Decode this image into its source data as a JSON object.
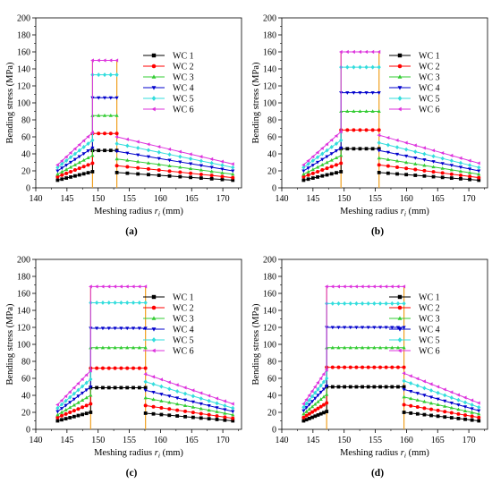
{
  "chart_data": [
    {
      "type": "line",
      "panel_label": "(a)",
      "xlabel": "Meshing radius",
      "xlabel_var": "r",
      "xlabel_sub": "i",
      "xlabel_unit": "(mm)",
      "ylabel": "Bending stress (MPa)",
      "xlim": [
        140,
        173
      ],
      "ylim": [
        0,
        200
      ],
      "xticks": [
        140,
        145,
        150,
        155,
        160,
        165,
        170
      ],
      "yticks": [
        0,
        20,
        40,
        60,
        80,
        100,
        120,
        140,
        160,
        180,
        200
      ],
      "legend_position": "top-right",
      "grid": false,
      "flat_start": 149.1,
      "flat_end": 153.0,
      "series": [
        {
          "name": "WC 1",
          "color": "#000000",
          "marker": "square",
          "left_x": [
            143.5,
            149.1
          ],
          "left_y": [
            9,
            19
          ],
          "flat_y": 44,
          "right_x": [
            153.0,
            171.6
          ],
          "right_y": [
            18,
            9
          ]
        },
        {
          "name": "WC 2",
          "color": "#ff0000",
          "marker": "circle",
          "left_x": [
            143.5,
            149.1
          ],
          "left_y": [
            13,
            29
          ],
          "flat_y": 64,
          "right_x": [
            153.0,
            171.6
          ],
          "right_y": [
            26,
            12
          ]
        },
        {
          "name": "WC 3",
          "color": "#33cc33",
          "marker": "triangle-up",
          "left_x": [
            143.5,
            149.1
          ],
          "left_y": [
            16,
            38
          ],
          "flat_y": 85,
          "right_x": [
            153.0,
            171.6
          ],
          "right_y": [
            34,
            16
          ]
        },
        {
          "name": "WC 4",
          "color": "#0000cc",
          "marker": "triangle-down",
          "left_x": [
            143.5,
            149.1
          ],
          "left_y": [
            20,
            47
          ],
          "flat_y": 106,
          "right_x": [
            153.0,
            171.6
          ],
          "right_y": [
            43,
            20
          ]
        },
        {
          "name": "WC 5",
          "color": "#33dddd",
          "marker": "diamond",
          "left_x": [
            143.5,
            149.1
          ],
          "left_y": [
            24,
            56
          ],
          "flat_y": 133,
          "right_x": [
            153.0,
            171.6
          ],
          "right_y": [
            52,
            24
          ]
        },
        {
          "name": "WC 6",
          "color": "#dd33dd",
          "marker": "triangle-left",
          "left_x": [
            143.5,
            149.1
          ],
          "left_y": [
            27,
            65
          ],
          "flat_y": 150,
          "right_x": [
            153.0,
            171.6
          ],
          "right_y": [
            60,
            28
          ]
        }
      ]
    },
    {
      "type": "line",
      "panel_label": "(b)",
      "xlabel": "Meshing radius",
      "xlabel_var": "r",
      "xlabel_sub": "i",
      "xlabel_unit": "(mm)",
      "ylabel": "Bending stress (MPa)",
      "xlim": [
        140,
        173
      ],
      "ylim": [
        0,
        200
      ],
      "xticks": [
        140,
        145,
        150,
        155,
        160,
        165,
        170
      ],
      "yticks": [
        0,
        20,
        40,
        60,
        80,
        100,
        120,
        140,
        160,
        180,
        200
      ],
      "legend_position": "top-right",
      "grid": false,
      "flat_start": 149.5,
      "flat_end": 155.6,
      "series": [
        {
          "name": "WC 1",
          "color": "#000000",
          "marker": "square",
          "left_x": [
            143.5,
            149.5
          ],
          "left_y": [
            9,
            19
          ],
          "flat_y": 46,
          "right_x": [
            155.6,
            171.6
          ],
          "right_y": [
            18,
            9
          ]
        },
        {
          "name": "WC 2",
          "color": "#ff0000",
          "marker": "circle",
          "left_x": [
            143.5,
            149.5
          ],
          "left_y": [
            13,
            29
          ],
          "flat_y": 68,
          "right_x": [
            155.6,
            171.6
          ],
          "right_y": [
            27,
            12
          ]
        },
        {
          "name": "WC 3",
          "color": "#33cc33",
          "marker": "triangle-up",
          "left_x": [
            143.5,
            149.5
          ],
          "left_y": [
            16,
            38
          ],
          "flat_y": 90,
          "right_x": [
            155.6,
            171.6
          ],
          "right_y": [
            35,
            16
          ]
        },
        {
          "name": "WC 4",
          "color": "#0000cc",
          "marker": "triangle-down",
          "left_x": [
            143.5,
            149.5
          ],
          "left_y": [
            20,
            47
          ],
          "flat_y": 112,
          "right_x": [
            155.6,
            171.6
          ],
          "right_y": [
            44,
            20
          ]
        },
        {
          "name": "WC 5",
          "color": "#33dddd",
          "marker": "diamond",
          "left_x": [
            143.5,
            149.5
          ],
          "left_y": [
            24,
            56
          ],
          "flat_y": 142,
          "right_x": [
            155.6,
            171.6
          ],
          "right_y": [
            53,
            24
          ]
        },
        {
          "name": "WC 6",
          "color": "#dd33dd",
          "marker": "triangle-left",
          "left_x": [
            143.5,
            149.5
          ],
          "left_y": [
            27,
            66
          ],
          "flat_y": 160,
          "right_x": [
            155.6,
            171.6
          ],
          "right_y": [
            62,
            29
          ]
        }
      ]
    },
    {
      "type": "line",
      "panel_label": "(c)",
      "xlabel": "Meshing radius",
      "xlabel_var": "r",
      "xlabel_sub": "i",
      "xlabel_unit": "(mm)",
      "ylabel": "Bending stress (MPa)",
      "xlim": [
        140,
        173
      ],
      "ylim": [
        0,
        200
      ],
      "xticks": [
        140,
        145,
        150,
        155,
        160,
        165,
        170
      ],
      "yticks": [
        0,
        20,
        40,
        60,
        80,
        100,
        120,
        140,
        160,
        180,
        200
      ],
      "legend_position": "top-right",
      "grid": false,
      "flat_start": 148.8,
      "flat_end": 157.6,
      "series": [
        {
          "name": "WC 1",
          "color": "#000000",
          "marker": "square",
          "left_x": [
            143.5,
            148.8
          ],
          "left_y": [
            10,
            20
          ],
          "flat_y": 49,
          "right_x": [
            157.6,
            171.6
          ],
          "right_y": [
            19,
            10
          ]
        },
        {
          "name": "WC 2",
          "color": "#ff0000",
          "marker": "circle",
          "left_x": [
            143.5,
            148.8
          ],
          "left_y": [
            14,
            30
          ],
          "flat_y": 72,
          "right_x": [
            157.6,
            171.6
          ],
          "right_y": [
            28,
            13
          ]
        },
        {
          "name": "WC 3",
          "color": "#33cc33",
          "marker": "triangle-up",
          "left_x": [
            143.5,
            148.8
          ],
          "left_y": [
            17,
            40
          ],
          "flat_y": 96,
          "right_x": [
            157.6,
            171.6
          ],
          "right_y": [
            37,
            17
          ]
        },
        {
          "name": "WC 4",
          "color": "#0000cc",
          "marker": "triangle-down",
          "left_x": [
            143.5,
            148.8
          ],
          "left_y": [
            21,
            50
          ],
          "flat_y": 119,
          "right_x": [
            157.6,
            171.6
          ],
          "right_y": [
            46,
            21
          ]
        },
        {
          "name": "WC 5",
          "color": "#33dddd",
          "marker": "diamond",
          "left_x": [
            143.5,
            148.8
          ],
          "left_y": [
            25,
            59
          ],
          "flat_y": 149,
          "right_x": [
            157.6,
            171.6
          ],
          "right_y": [
            56,
            25
          ]
        },
        {
          "name": "WC 6",
          "color": "#dd33dd",
          "marker": "triangle-left",
          "left_x": [
            143.5,
            148.8
          ],
          "left_y": [
            29,
            69
          ],
          "flat_y": 168,
          "right_x": [
            157.6,
            171.6
          ],
          "right_y": [
            65,
            30
          ]
        }
      ]
    },
    {
      "type": "line",
      "panel_label": "(d)",
      "xlabel": "Meshing radius",
      "xlabel_var": "r",
      "xlabel_sub": "i",
      "xlabel_unit": "(mm)",
      "ylabel": "Bending stress (MPa)",
      "xlim": [
        140,
        173
      ],
      "ylim": [
        0,
        200
      ],
      "xticks": [
        140,
        145,
        150,
        155,
        160,
        165,
        170
      ],
      "yticks": [
        0,
        20,
        40,
        60,
        80,
        100,
        120,
        140,
        160,
        180,
        200
      ],
      "legend_position": "top-right",
      "grid": false,
      "flat_start": 147.2,
      "flat_end": 159.6,
      "series": [
        {
          "name": "WC 1",
          "color": "#000000",
          "marker": "square",
          "left_x": [
            143.5,
            147.2
          ],
          "left_y": [
            10,
            21
          ],
          "flat_y": 50,
          "right_x": [
            159.6,
            171.6
          ],
          "right_y": [
            20,
            10
          ]
        },
        {
          "name": "WC 2",
          "color": "#ff0000",
          "marker": "circle",
          "left_x": [
            143.5,
            147.2
          ],
          "left_y": [
            14,
            31
          ],
          "flat_y": 73,
          "right_x": [
            159.6,
            171.6
          ],
          "right_y": [
            29,
            14
          ]
        },
        {
          "name": "WC 3",
          "color": "#33cc33",
          "marker": "triangle-up",
          "left_x": [
            143.5,
            147.2
          ],
          "left_y": [
            18,
            41
          ],
          "flat_y": 96,
          "right_x": [
            159.6,
            171.6
          ],
          "right_y": [
            38,
            18
          ]
        },
        {
          "name": "WC 4",
          "color": "#0000cc",
          "marker": "triangle-down",
          "left_x": [
            143.5,
            147.2
          ],
          "left_y": [
            22,
            51
          ],
          "flat_y": 120,
          "right_x": [
            159.6,
            171.6
          ],
          "right_y": [
            47,
            22
          ]
        },
        {
          "name": "WC 5",
          "color": "#33dddd",
          "marker": "diamond",
          "left_x": [
            143.5,
            147.2
          ],
          "left_y": [
            26,
            60
          ],
          "flat_y": 148,
          "right_x": [
            159.6,
            171.6
          ],
          "right_y": [
            57,
            26
          ]
        },
        {
          "name": "WC 6",
          "color": "#dd33dd",
          "marker": "triangle-left",
          "left_x": [
            143.5,
            147.2
          ],
          "left_y": [
            30,
            70
          ],
          "flat_y": 168,
          "right_x": [
            159.6,
            171.6
          ],
          "right_y": [
            66,
            31
          ]
        }
      ]
    }
  ]
}
